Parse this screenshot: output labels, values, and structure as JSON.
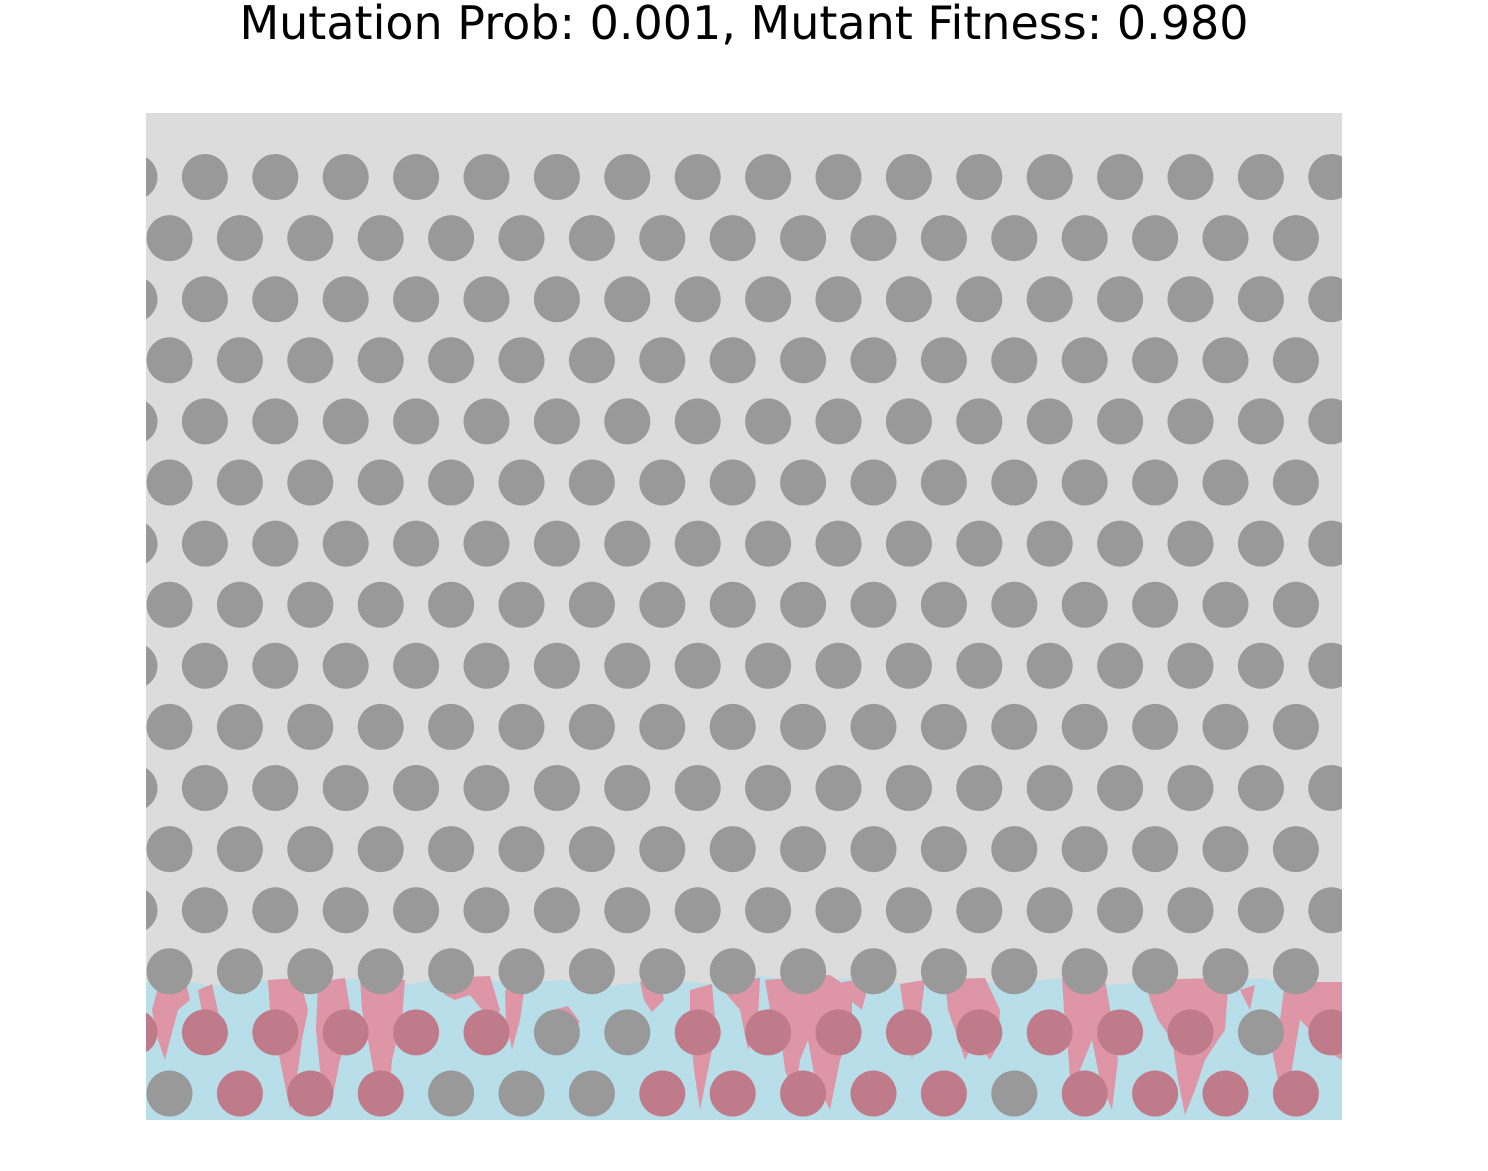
{
  "title": "Mutation Prob: 0.001, Mutant Fitness: 0.980",
  "colors": {
    "background": "#dcdcdc",
    "obstacle": "#999999",
    "wild_type": "#b8dfe9",
    "mutant": "#de95a5",
    "mutant_over_obstacle": "#bf7b8a"
  }
}
